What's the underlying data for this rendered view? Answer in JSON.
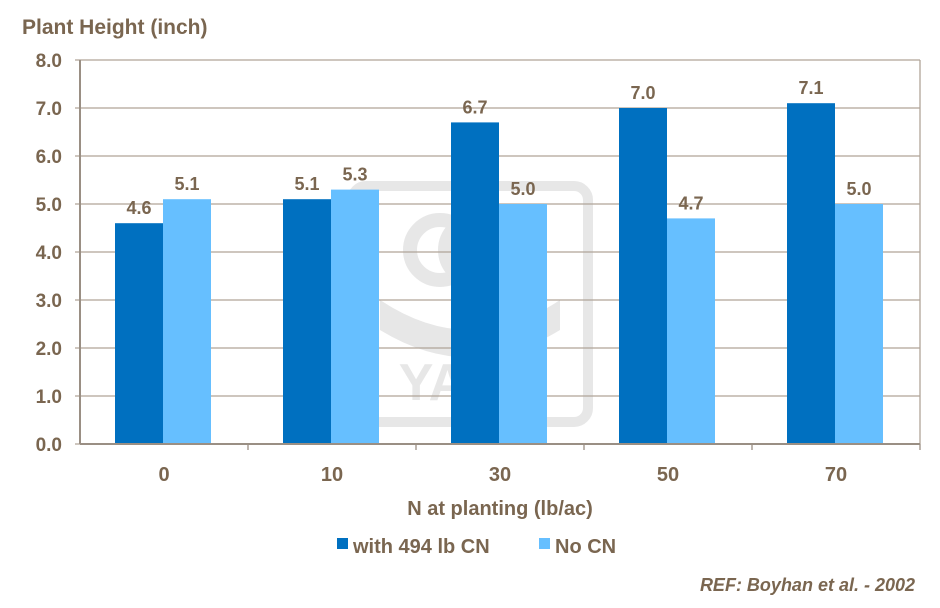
{
  "chart_data": {
    "type": "bar",
    "title": "Plant Height (inch)",
    "xlabel": "N at planting (lb/ac)",
    "ylabel": "",
    "categories": [
      "0",
      "10",
      "30",
      "50",
      "70"
    ],
    "series": [
      {
        "name": "with 494 lb CN",
        "values": [
          4.6,
          5.1,
          6.7,
          7.0,
          7.1
        ],
        "color": "#0070c0"
      },
      {
        "name": "No CN",
        "values": [
          5.1,
          5.3,
          5.0,
          4.7,
          5.0
        ],
        "color": "#66bfff"
      }
    ],
    "ylim": [
      0,
      8
    ],
    "yticks": [
      "0.0",
      "1.0",
      "2.0",
      "3.0",
      "4.0",
      "5.0",
      "6.0",
      "7.0",
      "8.0"
    ],
    "grid": true,
    "legend": "bottom",
    "text_color": "#7a6650",
    "watermark": "YARA",
    "reference": "REF: Boyhan et al. - 2002"
  }
}
